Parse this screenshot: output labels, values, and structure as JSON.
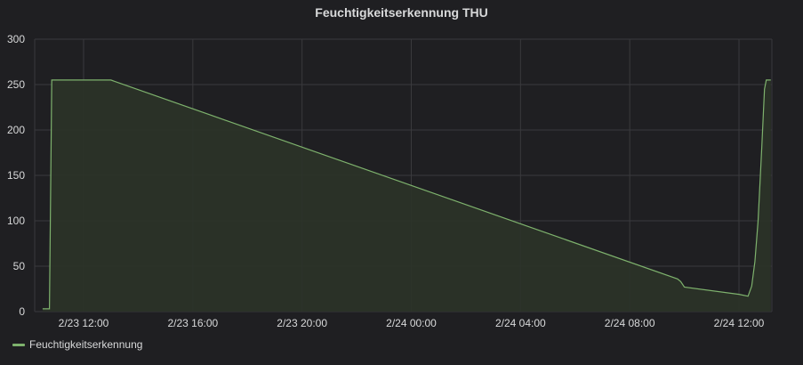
{
  "chart_data": {
    "type": "area",
    "title": "Feuchtigkeitserkennung THU",
    "xlabel": "",
    "ylabel": "",
    "ylim": [
      0,
      300
    ],
    "yticks": [
      "0",
      "50",
      "100",
      "150",
      "200",
      "250",
      "300"
    ],
    "xticks": [
      "2/23 12:00",
      "2/23 16:00",
      "2/23 20:00",
      "2/24 00:00",
      "2/24 04:00",
      "2/24 08:00",
      "2/24 12:00"
    ],
    "grid": true,
    "legend_position": "bottom-left",
    "colors": {
      "line": "#7eb26d",
      "fill": "#2b3328",
      "grid": "#3a3a3d",
      "background": "#1f1f22"
    },
    "series": [
      {
        "name": "Feuchtigkeitserkennung",
        "points": [
          [
            "2/23 10:30",
            3
          ],
          [
            "2/23 10:45",
            3
          ],
          [
            "2/23 10:50",
            255
          ],
          [
            "2/23 13:00",
            255
          ],
          [
            "2/24 09:45",
            36
          ],
          [
            "2/24 09:52",
            33
          ],
          [
            "2/24 10:00",
            27
          ],
          [
            "2/24 12:00",
            19
          ],
          [
            "2/24 12:20",
            17
          ],
          [
            "2/24 12:28",
            28
          ],
          [
            "2/24 12:35",
            55
          ],
          [
            "2/24 12:42",
            100
          ],
          [
            "2/24 12:50",
            180
          ],
          [
            "2/24 12:56",
            245
          ],
          [
            "2/24 13:00",
            255
          ],
          [
            "2/24 13:10",
            255
          ]
        ]
      }
    ]
  }
}
